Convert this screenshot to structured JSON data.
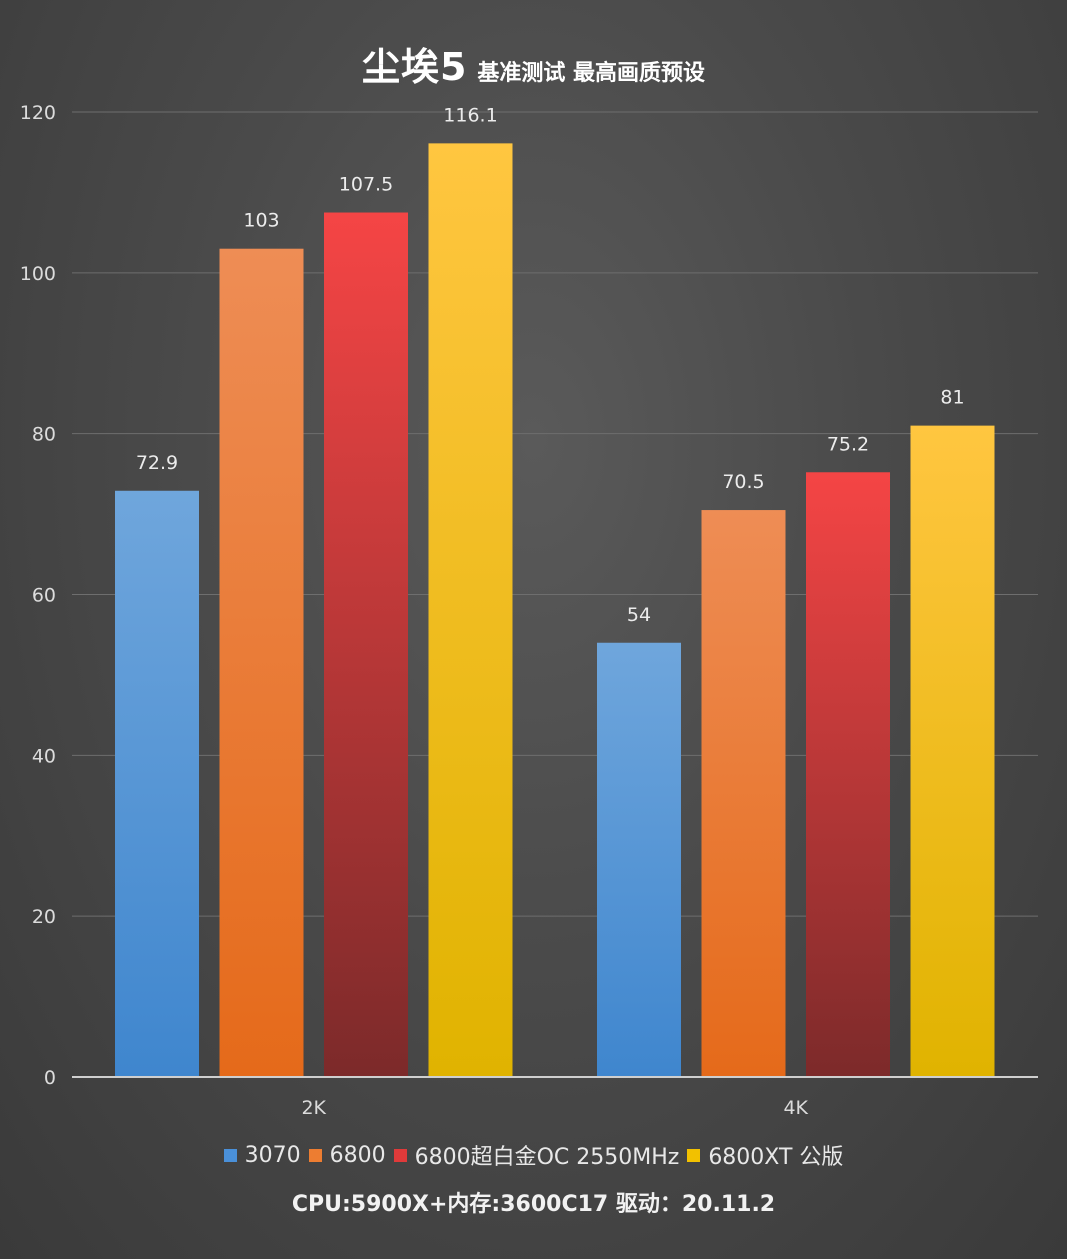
{
  "title": {
    "main": "尘埃5",
    "sub": "基准测试 最高画质预设"
  },
  "footer": "CPU:5900X+内存:3600C17 驱动：20.11.2",
  "chart_data": {
    "type": "bar",
    "categories": [
      "2K",
      "4K"
    ],
    "series": [
      {
        "name": "3070",
        "values": [
          72.9,
          54
        ],
        "color_top": "#6fa6dc",
        "color_bottom": "#3f86ce",
        "color": "#4a90d9"
      },
      {
        "name": "6800",
        "values": [
          103,
          70.5
        ],
        "color_top": "#ee8d55",
        "color_bottom": "#e56a1a",
        "color": "#ed7d31"
      },
      {
        "name": "6800超白金OC 2550MHz",
        "values": [
          107.5,
          75.2
        ],
        "color_top": "#f54545",
        "color_bottom": "#7c2a2a",
        "color": "#e03a3a"
      },
      {
        "name": "6800XT 公版",
        "values": [
          116.1,
          81
        ],
        "color_top": "#ffc640",
        "color_bottom": "#e0b300",
        "color": "#f2c100"
      }
    ],
    "value_labels": [
      [
        "72.9",
        "54"
      ],
      [
        "103",
        "70.5"
      ],
      [
        "107.5",
        "75.2"
      ],
      [
        "116.1",
        "81"
      ]
    ],
    "yticks": [
      "0",
      "20",
      "40",
      "60",
      "80",
      "100",
      "120"
    ],
    "ylim": [
      0,
      120
    ],
    "grid": true,
    "legend_position": "bottom"
  }
}
